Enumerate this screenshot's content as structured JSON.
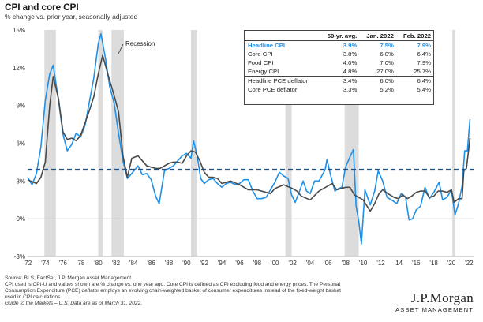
{
  "page": {
    "title": "CPI and core CPI",
    "subtitle": "% change vs. prior year, seasonally adjusted",
    "recession_label": "Recession",
    "footer_lines": [
      "Source: BLS, FactSet, J.P. Morgan Asset Management.",
      "CPI used is CPI-U and values shown are % change vs. one year ago. Core CPI is defined as CPI excluding food and energy prices. The Personal",
      "Consumption Expenditure (PCE) deflator employs an evolving chain-weighted basket of consumer expenditures instead of the fixed-weight basket",
      "used in CPI calculations."
    ],
    "footer_italic": "Guide to the Markets – U.S. Data are as of March 31, 2022.",
    "brand_name": "J.P.Morgan",
    "brand_sub": "ASSET MANAGEMENT"
  },
  "table": {
    "columns": [
      "50-yr. avg.",
      "Jan. 2022",
      "Feb. 2022"
    ],
    "rows": [
      {
        "label": "Headline CPI",
        "values": [
          "3.9%",
          "7.5%",
          "7.9%"
        ],
        "highlight": true
      },
      {
        "label": "Core CPI",
        "values": [
          "3.8%",
          "6.0%",
          "6.4%"
        ]
      },
      {
        "label": "Food CPI",
        "values": [
          "4.0%",
          "7.0%",
          "7.9%"
        ]
      },
      {
        "label": "Energy CPI",
        "values": [
          "4.8%",
          "27.0%",
          "25.7%"
        ]
      },
      {
        "label": "Headline PCE deflator",
        "values": [
          "3.4%",
          "6.0%",
          "6.4%"
        ],
        "separator": true
      },
      {
        "label": "Core PCE deflator",
        "values": [
          "3.3%",
          "5.2%",
          "5.4%"
        ]
      }
    ]
  },
  "colors": {
    "headline": "#1e90e8",
    "core": "#4a4a4a",
    "average": "#1f4e8c",
    "recession": "#dcdcdc",
    "zero_line": "#999999"
  },
  "chart_data": {
    "type": "line",
    "title": "CPI and core CPI",
    "subtitle": "% change vs. prior year, seasonally adjusted",
    "xlim": [
      1972,
      2022.5
    ],
    "ylim": [
      -3,
      15
    ],
    "x_ticks": [
      1972,
      1974,
      1976,
      1978,
      1980,
      1982,
      1984,
      1986,
      1988,
      1990,
      1992,
      1994,
      1996,
      1998,
      2000,
      2002,
      2004,
      2006,
      2008,
      2010,
      2012,
      2014,
      2016,
      2018,
      2020,
      2022
    ],
    "x_tick_labels": [
      "'72",
      "'74",
      "'76",
      "'78",
      "'80",
      "'82",
      "'84",
      "'86",
      "'88",
      "'90",
      "'92",
      "'94",
      "'96",
      "'98",
      "'00",
      "'02",
      "'04",
      "'06",
      "'08",
      "'10",
      "'12",
      "'14",
      "'16",
      "'18",
      "'20",
      "'22"
    ],
    "y_ticks": [
      -3,
      0,
      3,
      6,
      9,
      12,
      15
    ],
    "y_tick_labels": [
      "-3%",
      "0%",
      "3%",
      "6%",
      "9%",
      "12%",
      "15%"
    ],
    "grid": false,
    "recessions": [
      [
        1973.9,
        1975.2
      ],
      [
        1980.0,
        1980.5
      ],
      [
        1981.5,
        1982.9
      ],
      [
        1990.5,
        1991.2
      ],
      [
        2001.2,
        2001.9
      ],
      [
        2007.9,
        2009.5
      ],
      [
        2020.1,
        2020.4
      ]
    ],
    "average_line": {
      "value": 3.9,
      "style": "dashed"
    },
    "series": [
      {
        "name": "Headline CPI",
        "x": [
          1972.0,
          1972.5,
          1973.0,
          1973.5,
          1974.0,
          1974.5,
          1974.9,
          1975.5,
          1976.0,
          1976.5,
          1977.0,
          1977.5,
          1978.0,
          1978.5,
          1979.0,
          1979.5,
          1980.0,
          1980.3,
          1980.8,
          1981.3,
          1981.8,
          1982.3,
          1982.8,
          1983.3,
          1983.8,
          1984.5,
          1985.0,
          1985.5,
          1986.0,
          1986.5,
          1986.9,
          1987.5,
          1988.0,
          1988.5,
          1989.0,
          1989.5,
          1990.0,
          1990.5,
          1990.8,
          1991.2,
          1991.6,
          1992.0,
          1992.5,
          1993.0,
          1993.5,
          1994.0,
          1994.5,
          1995.0,
          1995.5,
          1996.0,
          1996.5,
          1997.0,
          1997.5,
          1998.0,
          1998.5,
          1999.0,
          1999.5,
          2000.0,
          2000.5,
          2001.0,
          2001.5,
          2001.9,
          2002.3,
          2002.8,
          2003.2,
          2003.6,
          2004.0,
          2004.5,
          2005.0,
          2005.7,
          2005.9,
          2006.3,
          2006.8,
          2007.2,
          2007.6,
          2008.0,
          2008.5,
          2008.9,
          2009.2,
          2009.5,
          2009.8,
          2010.2,
          2010.8,
          2011.3,
          2011.7,
          2012.2,
          2012.7,
          2013.2,
          2013.8,
          2014.3,
          2014.8,
          2015.2,
          2015.6,
          2016.0,
          2016.5,
          2017.0,
          2017.5,
          2018.0,
          2018.6,
          2019.0,
          2019.5,
          2020.0,
          2020.4,
          2020.8,
          2021.2,
          2021.5,
          2021.8,
          2022.1
        ],
        "values": [
          3.3,
          2.7,
          3.6,
          5.7,
          9.4,
          11.5,
          12.2,
          9.4,
          6.7,
          5.4,
          5.9,
          6.8,
          6.5,
          7.4,
          9.3,
          11.2,
          13.9,
          14.7,
          12.8,
          10.5,
          9.2,
          6.8,
          4.6,
          3.2,
          3.6,
          4.2,
          3.5,
          3.6,
          3.1,
          1.8,
          1.2,
          3.8,
          4.0,
          4.2,
          4.6,
          5.0,
          5.2,
          4.8,
          6.2,
          5.0,
          3.2,
          2.8,
          3.1,
          3.2,
          2.8,
          2.5,
          2.8,
          2.9,
          2.7,
          2.8,
          3.1,
          3.1,
          2.2,
          1.6,
          1.6,
          1.7,
          2.3,
          2.9,
          3.7,
          3.4,
          3.2,
          1.9,
          1.3,
          2.2,
          3.0,
          2.2,
          2.0,
          3.0,
          3.0,
          3.9,
          4.7,
          3.5,
          2.2,
          2.4,
          2.5,
          4.1,
          4.9,
          5.5,
          1.0,
          -0.2,
          -2.0,
          2.3,
          1.1,
          2.2,
          3.8,
          3.0,
          1.7,
          1.5,
          1.2,
          2.0,
          1.7,
          -0.1,
          0.0,
          0.7,
          1.0,
          2.5,
          1.6,
          2.1,
          2.9,
          1.5,
          1.7,
          2.3,
          0.3,
          1.2,
          2.6,
          5.4,
          5.4,
          7.9
        ]
      },
      {
        "name": "Core CPI",
        "x": [
          1972.0,
          1973.0,
          1973.5,
          1974.0,
          1974.5,
          1974.9,
          1975.5,
          1976.0,
          1976.5,
          1977.0,
          1977.5,
          1978.0,
          1978.5,
          1979.0,
          1979.5,
          1980.0,
          1980.5,
          1980.8,
          1981.3,
          1981.8,
          1982.3,
          1982.8,
          1983.3,
          1983.8,
          1984.5,
          1985.0,
          1985.5,
          1986.0,
          1986.5,
          1987.0,
          1987.5,
          1988.0,
          1988.5,
          1989.0,
          1989.5,
          1990.0,
          1990.5,
          1991.0,
          1991.5,
          1992.0,
          1992.5,
          1993.0,
          1993.5,
          1994.0,
          1995.0,
          1996.0,
          1997.0,
          1998.0,
          1999.0,
          1999.5,
          2000.0,
          2001.0,
          2002.0,
          2002.5,
          2003.0,
          2004.0,
          2005.0,
          2006.0,
          2006.5,
          2007.0,
          2008.0,
          2008.5,
          2009.0,
          2009.5,
          2010.0,
          2010.8,
          2011.3,
          2011.8,
          2012.2,
          2012.8,
          2013.5,
          2014.0,
          2014.5,
          2015.0,
          2015.5,
          2016.0,
          2016.5,
          2017.0,
          2017.5,
          2018.0,
          2018.5,
          2019.0,
          2019.5,
          2020.0,
          2020.3,
          2020.8,
          2021.2,
          2021.4,
          2021.7,
          2022.1
        ],
        "values": [
          3.1,
          2.8,
          3.3,
          4.5,
          9.0,
          11.3,
          9.5,
          6.9,
          6.3,
          6.4,
          6.2,
          6.6,
          7.6,
          8.6,
          9.7,
          11.5,
          13.0,
          12.2,
          11.0,
          9.8,
          8.5,
          5.0,
          3.3,
          4.8,
          5.0,
          4.6,
          4.2,
          4.1,
          4.0,
          4.0,
          4.2,
          4.4,
          4.5,
          4.5,
          4.4,
          5.0,
          5.4,
          5.3,
          4.6,
          3.7,
          3.3,
          3.3,
          3.2,
          2.8,
          3.0,
          2.7,
          2.3,
          2.3,
          2.1,
          2.0,
          2.4,
          2.7,
          2.4,
          2.2,
          1.8,
          1.5,
          2.2,
          2.6,
          2.8,
          2.3,
          2.5,
          2.5,
          1.9,
          1.7,
          1.5,
          0.6,
          1.2,
          2.0,
          2.3,
          2.0,
          1.7,
          1.6,
          1.9,
          1.6,
          1.8,
          2.1,
          2.2,
          2.2,
          1.7,
          1.8,
          2.2,
          2.2,
          2.1,
          2.3,
          1.3,
          1.6,
          1.6,
          3.8,
          4.0,
          6.4
        ]
      }
    ]
  }
}
